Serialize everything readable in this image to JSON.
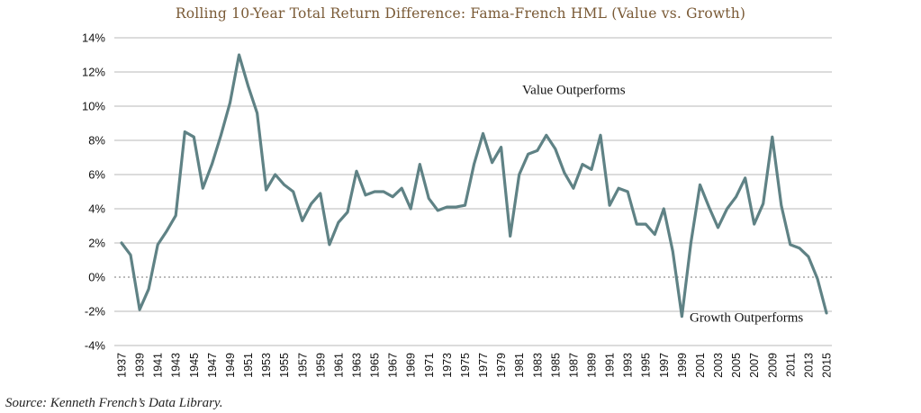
{
  "chart_data": {
    "type": "line",
    "title": "Rolling 10-Year Total Return Difference: Fama-French HML (Value vs. Growth)",
    "xlabel": "",
    "ylabel": "",
    "ylim": [
      -4,
      14
    ],
    "yticks": [
      "14%",
      "12%",
      "10%",
      "8%",
      "6%",
      "4%",
      "2%",
      "0%",
      "-2%",
      "-4%"
    ],
    "xticks": [
      "1937",
      "1939",
      "1941",
      "1943",
      "1945",
      "1947",
      "1949",
      "1951",
      "1953",
      "1955",
      "1957",
      "1959",
      "1961",
      "1963",
      "1965",
      "1967",
      "1969",
      "1971",
      "1973",
      "1975",
      "1977",
      "1979",
      "1981",
      "1983",
      "1985",
      "1987",
      "1989",
      "1991",
      "1993",
      "1995",
      "1997",
      "1999",
      "2001",
      "2003",
      "2005",
      "2007",
      "2009",
      "2011",
      "2013",
      "2015"
    ],
    "grid": true,
    "line_color": "#5f8285",
    "series": [
      {
        "x": [
          1937,
          1938,
          1939,
          1940,
          1941,
          1942,
          1943,
          1944,
          1945,
          1946,
          1947,
          1948,
          1949,
          1950,
          1951,
          1952,
          1953,
          1954,
          1955,
          1956,
          1957,
          1958,
          1959,
          1960,
          1961,
          1962,
          1963,
          1964,
          1965,
          1966,
          1967,
          1968,
          1969,
          1970,
          1971,
          1972,
          1973,
          1974,
          1975,
          1976,
          1977,
          1978,
          1979,
          1980,
          1981,
          1982,
          1983,
          1984,
          1985,
          1986,
          1987,
          1988,
          1989,
          1990,
          1991,
          1992,
          1993,
          1994,
          1995,
          1996,
          1997,
          1998,
          1999,
          2000,
          2001,
          2002,
          2003,
          2004,
          2005,
          2006,
          2007,
          2008,
          2009,
          2010,
          2011,
          2012,
          2013,
          2014,
          2015
        ],
        "values": [
          2.0,
          1.3,
          -1.9,
          -0.7,
          1.9,
          2.7,
          3.6,
          8.5,
          8.2,
          5.2,
          6.6,
          8.3,
          10.2,
          13.0,
          11.2,
          9.6,
          5.1,
          6.0,
          5.4,
          5.0,
          3.3,
          4.3,
          4.9,
          1.9,
          3.2,
          3.8,
          6.2,
          4.8,
          5.0,
          5.0,
          4.7,
          5.2,
          4.0,
          6.6,
          4.6,
          3.9,
          4.1,
          4.1,
          4.2,
          6.6,
          8.4,
          6.7,
          7.6,
          2.4,
          6.0,
          7.2,
          7.4,
          8.3,
          7.5,
          6.1,
          5.2,
          6.6,
          6.3,
          8.3,
          4.2,
          5.2,
          5.0,
          3.1,
          3.1,
          2.5,
          4.0,
          1.5,
          -2.3,
          2.0,
          5.4,
          4.1,
          2.9,
          4.0,
          4.7,
          5.8,
          3.1,
          4.3,
          8.2,
          4.2,
          1.9,
          1.7,
          1.2,
          -0.1,
          -2.1
        ]
      }
    ],
    "annotations": [
      "Value Outperforms",
      "Growth Outperforms"
    ]
  },
  "source": "Source: Kenneth French’s Data Library."
}
